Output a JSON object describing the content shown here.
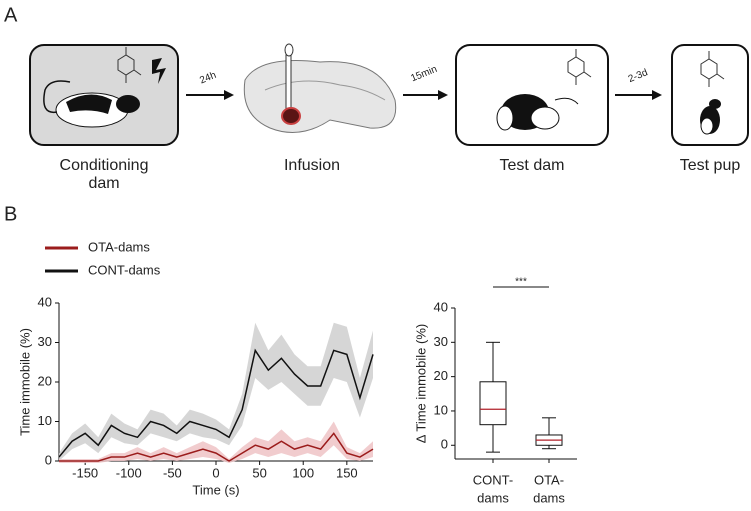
{
  "panel_a": {
    "label": "A",
    "steps": [
      [
        "Conditioning",
        "dam"
      ],
      [
        "Infusion"
      ],
      [
        "Test dam"
      ],
      [
        "Test pup"
      ]
    ],
    "arrows": [
      "24h",
      "15min",
      "2-3d"
    ]
  },
  "panel_b": {
    "label": "B"
  },
  "chart_data": [
    {
      "type": "line",
      "xlabel": "Time (s)",
      "ylabel": "Time immobile (%)",
      "x": [
        -180,
        -165,
        -150,
        -135,
        -120,
        -105,
        -90,
        -75,
        -60,
        -45,
        -30,
        -15,
        0,
        15,
        30,
        45,
        60,
        75,
        90,
        105,
        120,
        135,
        150,
        165,
        180
      ],
      "xlim": [
        -180,
        180
      ],
      "xticks": [
        -150,
        -100,
        -50,
        0,
        50,
        100,
        150
      ],
      "ylim": [
        0,
        40
      ],
      "yticks": [
        0,
        10,
        20,
        30,
        40
      ],
      "series": [
        {
          "name": "OTA-dams",
          "color": "#9b1c1c",
          "band_color": "#efc3c6",
          "values": [
            0,
            0,
            0,
            0,
            1,
            1,
            2,
            1,
            2,
            1,
            2,
            3,
            2,
            0,
            2,
            4,
            3,
            5,
            3,
            4,
            3,
            7,
            2,
            1,
            3
          ],
          "errors": [
            0.5,
            0.5,
            0.5,
            0.5,
            1,
            1,
            1.5,
            1,
            1.5,
            1,
            1.5,
            2,
            1.5,
            0.5,
            1.5,
            2,
            2,
            3,
            2,
            2,
            2,
            3,
            1.5,
            1,
            2
          ]
        },
        {
          "name": "CONT-dams",
          "color": "#111111",
          "band_color": "#cfcfcf",
          "values": [
            1,
            5,
            7,
            4,
            9,
            7,
            6,
            10,
            9,
            7,
            10,
            9,
            8,
            6,
            13,
            28,
            23,
            26,
            22,
            19,
            19,
            28,
            27,
            16,
            27
          ],
          "errors": [
            1,
            2,
            2.5,
            2,
            3,
            2.5,
            2,
            3,
            3,
            2,
            3,
            3,
            2.5,
            2,
            4,
            7,
            5,
            6,
            5,
            5,
            5,
            7,
            7,
            5,
            6
          ]
        }
      ]
    },
    {
      "type": "box",
      "ylabel": "Δ Time immobile (%)",
      "categories": [
        [
          "CONT-",
          "dams"
        ],
        [
          "OTA-",
          "dams"
        ]
      ],
      "ylim": [
        -4,
        40
      ],
      "yticks": [
        0,
        10,
        20,
        30,
        40
      ],
      "color": "#111111",
      "median_color": "#b0202a",
      "annotation": "***",
      "boxes": [
        {
          "min": -2,
          "q1": 6,
          "median": 10.5,
          "q3": 18.5,
          "max": 30
        },
        {
          "min": -1,
          "q1": 0,
          "median": 1.5,
          "q3": 3,
          "max": 8
        }
      ]
    }
  ]
}
